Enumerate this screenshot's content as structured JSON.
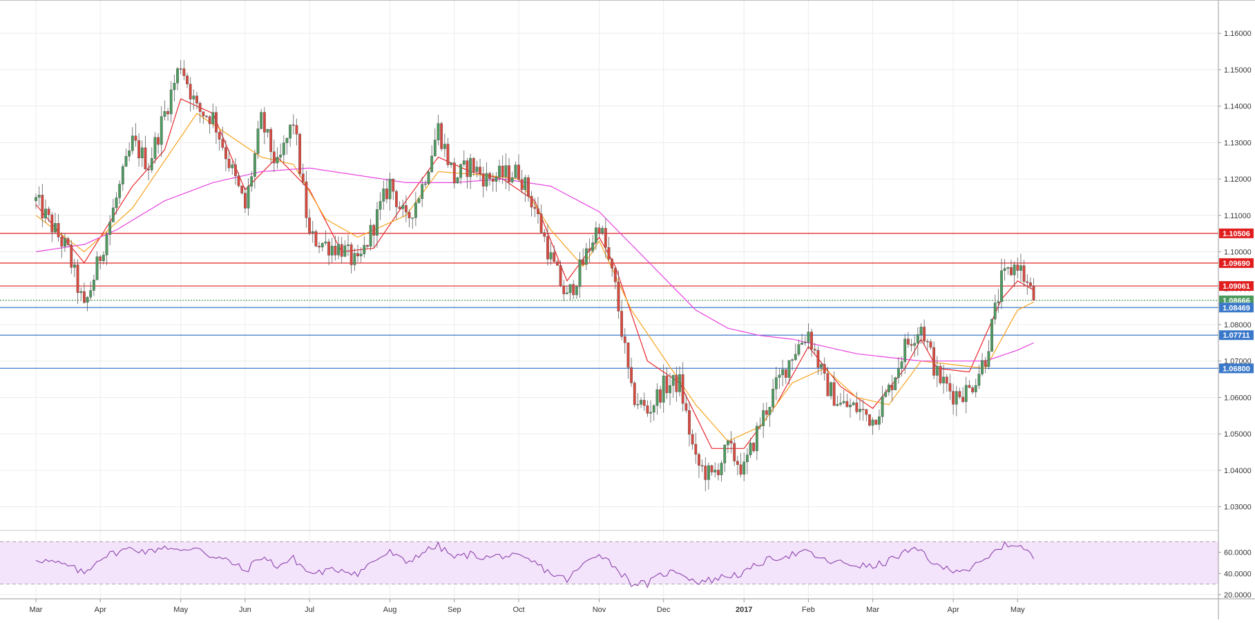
{
  "colors": {
    "up": "#4d9a5e",
    "down": "#d9493f",
    "ma_fast": "#e8262b",
    "ma_mid": "#f7a21b",
    "ma_slow": "#e83fe0",
    "rsi_line": "#8e44ad",
    "rsi_band": "#f3e3fb",
    "resistance": "#e02020",
    "support": "#3a78c9",
    "grid": "#ececec"
  },
  "price_axis": {
    "ticks": [
      "1.16000",
      "1.15000",
      "1.14000",
      "1.13000",
      "1.12000",
      "1.11000",
      "1.10000",
      "1.09000",
      "1.08000",
      "1.07000",
      "1.06000",
      "1.05000",
      "1.04000",
      "1.03000"
    ],
    "tick_values": [
      1.16,
      1.15,
      1.14,
      1.13,
      1.12,
      1.11,
      1.1,
      1.09,
      1.08,
      1.07,
      1.06,
      1.05,
      1.04,
      1.03
    ],
    "ylim": [
      1.025,
      1.168
    ]
  },
  "rsi_axis": {
    "ticks": [
      "60.0000",
      "40.0000",
      "20.0000"
    ],
    "tick_values": [
      60,
      40,
      20
    ],
    "ylim": [
      18,
      78
    ],
    "band": [
      30,
      70
    ]
  },
  "time_axis": {
    "labels": [
      "Mar",
      "Apr",
      "May",
      "Jun",
      "Jul",
      "Aug",
      "Sep",
      "Oct",
      "Nov",
      "Dec",
      "2017",
      "Feb",
      "Mar",
      "Apr",
      "May"
    ],
    "bold": [
      false,
      false,
      false,
      false,
      false,
      false,
      false,
      false,
      false,
      false,
      true,
      false,
      false,
      false,
      false
    ],
    "week_index": [
      0,
      4,
      9,
      13,
      17,
      22,
      26,
      30,
      35,
      39,
      44,
      48,
      52,
      57,
      61
    ]
  },
  "levels": [
    {
      "label": "1.10506",
      "value": 1.10506,
      "kind": "resistance"
    },
    {
      "label": "1.09690",
      "value": 1.0969,
      "kind": "resistance"
    },
    {
      "label": "1.09061",
      "value": 1.09061,
      "kind": "resistance"
    },
    {
      "label": "1.08666",
      "value": 1.08666,
      "kind": "current"
    },
    {
      "label": "1.08469",
      "value": 1.08469,
      "kind": "support"
    },
    {
      "label": "1.07711",
      "value": 1.07711,
      "kind": "support"
    },
    {
      "label": "1.06800",
      "value": 1.068,
      "kind": "support"
    }
  ],
  "chart_data": {
    "type": "candlestick",
    "title": "",
    "period": "daily",
    "x_range": [
      "Feb 2016",
      "May 2017"
    ],
    "ylim": [
      1.025,
      1.168
    ],
    "price_anchors": [
      [
        0,
        1.114
      ],
      [
        2,
        1.1
      ],
      [
        3,
        1.084
      ],
      [
        4,
        1.099
      ],
      [
        6,
        1.13
      ],
      [
        7,
        1.124
      ],
      [
        8,
        1.138
      ],
      [
        9,
        1.152
      ],
      [
        10,
        1.139
      ],
      [
        11,
        1.137
      ],
      [
        13,
        1.112
      ],
      [
        14,
        1.136
      ],
      [
        15,
        1.123
      ],
      [
        16,
        1.136
      ],
      [
        17,
        1.104
      ],
      [
        18,
        1.102
      ],
      [
        19,
        1.101
      ],
      [
        20,
        1.096
      ],
      [
        22,
        1.119
      ],
      [
        23,
        1.108
      ],
      [
        24,
        1.118
      ],
      [
        25,
        1.134
      ],
      [
        26,
        1.12
      ],
      [
        27,
        1.124
      ],
      [
        28,
        1.12
      ],
      [
        29,
        1.121
      ],
      [
        30,
        1.122
      ],
      [
        31,
        1.112
      ],
      [
        32,
        1.098
      ],
      [
        33,
        1.087
      ],
      [
        34,
        1.097
      ],
      [
        35,
        1.108
      ],
      [
        36,
        1.09
      ],
      [
        37,
        1.061
      ],
      [
        38,
        1.056
      ],
      [
        39,
        1.063
      ],
      [
        40,
        1.064
      ],
      [
        41,
        1.042
      ],
      [
        42,
        1.038
      ],
      [
        43,
        1.046
      ],
      [
        44,
        1.04
      ],
      [
        45,
        1.053
      ],
      [
        46,
        1.063
      ],
      [
        47,
        1.072
      ],
      [
        48,
        1.078
      ],
      [
        49,
        1.064
      ],
      [
        50,
        1.058
      ],
      [
        51,
        1.057
      ],
      [
        52,
        1.054
      ],
      [
        53,
        1.062
      ],
      [
        54,
        1.074
      ],
      [
        55,
        1.08
      ],
      [
        56,
        1.066
      ],
      [
        57,
        1.061
      ],
      [
        58,
        1.062
      ],
      [
        59,
        1.071
      ],
      [
        60,
        1.092
      ],
      [
        61,
        1.097
      ],
      [
        62,
        1.0867
      ]
    ],
    "moving_averages": [
      {
        "period": "fast",
        "anchors": [
          [
            0,
            1.113
          ],
          [
            3,
            1.097
          ],
          [
            6,
            1.118
          ],
          [
            8,
            1.128
          ],
          [
            9,
            1.142
          ],
          [
            11,
            1.138
          ],
          [
            13,
            1.117
          ],
          [
            15,
            1.126
          ],
          [
            17,
            1.117
          ],
          [
            19,
            1.1
          ],
          [
            21,
            1.101
          ],
          [
            23,
            1.114
          ],
          [
            25,
            1.126
          ],
          [
            27,
            1.122
          ],
          [
            29,
            1.12
          ],
          [
            31,
            1.114
          ],
          [
            33,
            1.092
          ],
          [
            35,
            1.104
          ],
          [
            36,
            1.096
          ],
          [
            38,
            1.07
          ],
          [
            40,
            1.064
          ],
          [
            42,
            1.046
          ],
          [
            44,
            1.046
          ],
          [
            46,
            1.058
          ],
          [
            48,
            1.074
          ],
          [
            50,
            1.063
          ],
          [
            52,
            1.057
          ],
          [
            54,
            1.068
          ],
          [
            55,
            1.076
          ],
          [
            56,
            1.068
          ],
          [
            58,
            1.067
          ],
          [
            60,
            1.087
          ],
          [
            61,
            1.092
          ],
          [
            62,
            1.0895
          ]
        ]
      },
      {
        "period": "mid",
        "anchors": [
          [
            0,
            1.11
          ],
          [
            3,
            1.1
          ],
          [
            6,
            1.112
          ],
          [
            8,
            1.125
          ],
          [
            10,
            1.138
          ],
          [
            12,
            1.132
          ],
          [
            14,
            1.126
          ],
          [
            16,
            1.124
          ],
          [
            18,
            1.109
          ],
          [
            20,
            1.104
          ],
          [
            23,
            1.11
          ],
          [
            25,
            1.122
          ],
          [
            28,
            1.121
          ],
          [
            30,
            1.12
          ],
          [
            32,
            1.106
          ],
          [
            34,
            1.096
          ],
          [
            35,
            1.103
          ],
          [
            37,
            1.084
          ],
          [
            39,
            1.071
          ],
          [
            41,
            1.058
          ],
          [
            43,
            1.048
          ],
          [
            45,
            1.052
          ],
          [
            47,
            1.064
          ],
          [
            49,
            1.068
          ],
          [
            51,
            1.06
          ],
          [
            53,
            1.058
          ],
          [
            55,
            1.07
          ],
          [
            57,
            1.069
          ],
          [
            59,
            1.068
          ],
          [
            61,
            1.084
          ],
          [
            62,
            1.0862
          ]
        ]
      },
      {
        "period": "slow",
        "anchors": [
          [
            0,
            1.1
          ],
          [
            3,
            1.102
          ],
          [
            5,
            1.106
          ],
          [
            8,
            1.114
          ],
          [
            11,
            1.119
          ],
          [
            14,
            1.122
          ],
          [
            17,
            1.123
          ],
          [
            20,
            1.121
          ],
          [
            23,
            1.119
          ],
          [
            26,
            1.119
          ],
          [
            29,
            1.12
          ],
          [
            32,
            1.118
          ],
          [
            35,
            1.111
          ],
          [
            37,
            1.102
          ],
          [
            39,
            1.093
          ],
          [
            41,
            1.084
          ],
          [
            43,
            1.079
          ],
          [
            45,
            1.077
          ],
          [
            47,
            1.076
          ],
          [
            49,
            1.074
          ],
          [
            51,
            1.072
          ],
          [
            53,
            1.071
          ],
          [
            55,
            1.07
          ],
          [
            57,
            1.07
          ],
          [
            59,
            1.07
          ],
          [
            61,
            1.073
          ],
          [
            62,
            1.075
          ]
        ]
      }
    ],
    "rsi_anchors": [
      [
        0,
        54
      ],
      [
        2,
        47
      ],
      [
        3,
        40
      ],
      [
        4,
        55
      ],
      [
        5,
        60
      ],
      [
        6,
        64
      ],
      [
        7,
        60
      ],
      [
        8,
        66
      ],
      [
        9,
        60
      ],
      [
        10,
        66
      ],
      [
        11,
        55
      ],
      [
        12,
        52
      ],
      [
        13,
        42
      ],
      [
        14,
        56
      ],
      [
        15,
        47
      ],
      [
        16,
        54
      ],
      [
        17,
        40
      ],
      [
        18,
        42
      ],
      [
        19,
        44
      ],
      [
        20,
        40
      ],
      [
        21,
        52
      ],
      [
        22,
        60
      ],
      [
        23,
        50
      ],
      [
        24,
        60
      ],
      [
        25,
        66
      ],
      [
        26,
        55
      ],
      [
        27,
        58
      ],
      [
        28,
        55
      ],
      [
        29,
        57
      ],
      [
        30,
        55
      ],
      [
        31,
        50
      ],
      [
        32,
        40
      ],
      [
        33,
        34
      ],
      [
        34,
        48
      ],
      [
        35,
        60
      ],
      [
        36,
        46
      ],
      [
        37,
        31
      ],
      [
        38,
        30
      ],
      [
        39,
        40
      ],
      [
        40,
        42
      ],
      [
        41,
        32
      ],
      [
        42,
        34
      ],
      [
        43,
        38
      ],
      [
        44,
        40
      ],
      [
        45,
        50
      ],
      [
        46,
        55
      ],
      [
        47,
        58
      ],
      [
        48,
        60
      ],
      [
        49,
        52
      ],
      [
        50,
        50
      ],
      [
        51,
        48
      ],
      [
        52,
        46
      ],
      [
        53,
        52
      ],
      [
        54,
        60
      ],
      [
        55,
        62
      ],
      [
        56,
        46
      ],
      [
        57,
        44
      ],
      [
        58,
        44
      ],
      [
        59,
        52
      ],
      [
        60,
        66
      ],
      [
        61,
        68
      ],
      [
        62,
        55
      ]
    ]
  }
}
